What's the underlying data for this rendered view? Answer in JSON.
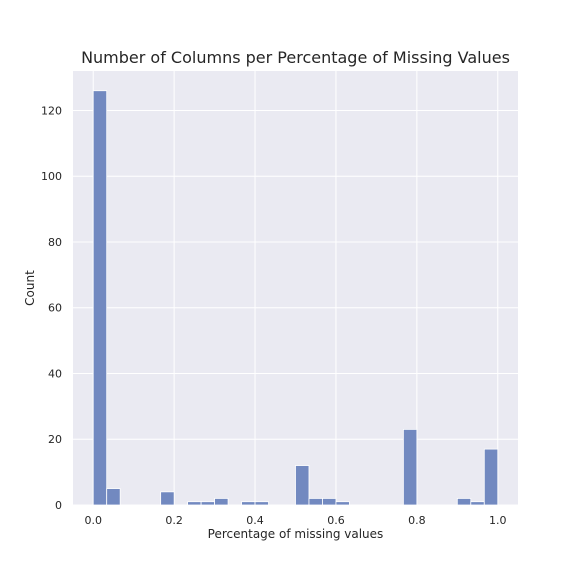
{
  "chart_data": {
    "type": "bar",
    "title": "Number of Columns per Percentage of Missing Values",
    "xlabel": "Percentage of missing values",
    "ylabel": "Count",
    "bin_width": 0.0333,
    "bins": [
      {
        "x": 0.0,
        "count": 126
      },
      {
        "x": 0.0333,
        "count": 5
      },
      {
        "x": 0.0667,
        "count": 0
      },
      {
        "x": 0.1,
        "count": 0
      },
      {
        "x": 0.1333,
        "count": 0
      },
      {
        "x": 0.1667,
        "count": 4
      },
      {
        "x": 0.2,
        "count": 0
      },
      {
        "x": 0.2333,
        "count": 1
      },
      {
        "x": 0.2667,
        "count": 1
      },
      {
        "x": 0.3,
        "count": 2
      },
      {
        "x": 0.3333,
        "count": 0
      },
      {
        "x": 0.3667,
        "count": 1
      },
      {
        "x": 0.4,
        "count": 1
      },
      {
        "x": 0.4333,
        "count": 0
      },
      {
        "x": 0.4667,
        "count": 0
      },
      {
        "x": 0.5,
        "count": 12
      },
      {
        "x": 0.5333,
        "count": 2
      },
      {
        "x": 0.5667,
        "count": 2
      },
      {
        "x": 0.6,
        "count": 1
      },
      {
        "x": 0.6333,
        "count": 0
      },
      {
        "x": 0.6667,
        "count": 0
      },
      {
        "x": 0.7,
        "count": 0
      },
      {
        "x": 0.7333,
        "count": 0
      },
      {
        "x": 0.7667,
        "count": 23
      },
      {
        "x": 0.8,
        "count": 0
      },
      {
        "x": 0.8333,
        "count": 0
      },
      {
        "x": 0.8667,
        "count": 0
      },
      {
        "x": 0.9,
        "count": 2
      },
      {
        "x": 0.9333,
        "count": 1
      },
      {
        "x": 0.9667,
        "count": 17
      }
    ],
    "xlim": [
      -0.05,
      1.05
    ],
    "ylim": [
      0,
      132
    ],
    "xticks": [
      {
        "value": 0.0,
        "label": "0.0"
      },
      {
        "value": 0.2,
        "label": "0.2"
      },
      {
        "value": 0.4,
        "label": "0.4"
      },
      {
        "value": 0.6,
        "label": "0.6"
      },
      {
        "value": 0.8,
        "label": "0.8"
      },
      {
        "value": 1.0,
        "label": "1.0"
      }
    ],
    "yticks": [
      {
        "value": 0,
        "label": "0"
      },
      {
        "value": 20,
        "label": "20"
      },
      {
        "value": 40,
        "label": "40"
      },
      {
        "value": 60,
        "label": "60"
      },
      {
        "value": 80,
        "label": "80"
      },
      {
        "value": 100,
        "label": "100"
      },
      {
        "value": 120,
        "label": "120"
      }
    ],
    "grid": true,
    "colors": {
      "bar_fill": "#7289c0",
      "bar_stroke": "#ffffff",
      "plot_background": "#eaeaf2",
      "grid": "#ffffff",
      "text": "#262626"
    }
  }
}
